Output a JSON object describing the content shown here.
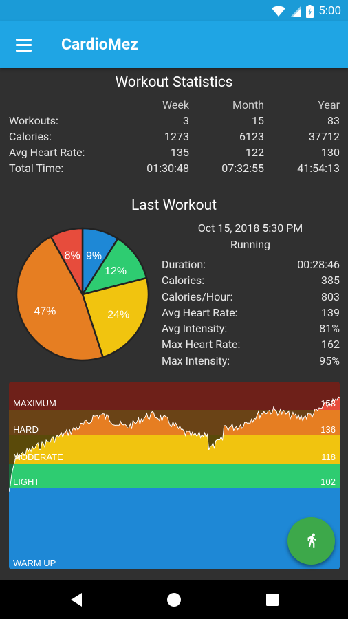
{
  "status_bar": {
    "time": "5:00",
    "icons": [
      "wifi-icon",
      "signal-icon",
      "battery-icon"
    ]
  },
  "app_bar": {
    "title": "CardioMez",
    "menu_icon": "menu-icon"
  },
  "workout_statistics": {
    "title": "Workout Statistics",
    "columns": [
      "Week",
      "Month",
      "Year"
    ],
    "rows": [
      {
        "label": "Workouts:",
        "week": "3",
        "month": "15",
        "year": "83"
      },
      {
        "label": "Calories:",
        "week": "1273",
        "month": "6123",
        "year": "37712"
      },
      {
        "label": "Avg Heart Rate:",
        "week": "135",
        "month": "122",
        "year": "130"
      },
      {
        "label": "Total Time:",
        "week": "01:30:48",
        "month": "07:32:55",
        "year": "41:54:13"
      }
    ]
  },
  "last_workout": {
    "title": "Last Workout",
    "date": "Oct 15, 2018 5:30 PM",
    "type": "Running",
    "details": [
      {
        "label": "Duration:",
        "value": "00:28:46"
      },
      {
        "label": "Calories:",
        "value": "385"
      },
      {
        "label": "Calories/Hour:",
        "value": "803"
      },
      {
        "label": "Avg Heart Rate:",
        "value": "139"
      },
      {
        "label": "Avg Intensity:",
        "value": "81%"
      },
      {
        "label": "Max Heart Rate:",
        "value": "162"
      },
      {
        "label": "Max Intensity:",
        "value": "95%"
      }
    ],
    "pie": [
      {
        "label": "9%",
        "value": 9,
        "color": "#1e88d6"
      },
      {
        "label": "12%",
        "value": 12,
        "color": "#2ecc71"
      },
      {
        "label": "24%",
        "value": 24,
        "color": "#f1c40f"
      },
      {
        "label": "47%",
        "value": 47,
        "color": "#e67e22"
      },
      {
        "label": "8%",
        "value": 8,
        "color": "#e74c3c"
      }
    ]
  },
  "heart_rate_zones": [
    {
      "name": "MAXIMUM",
      "threshold": "153",
      "color": "#6e2019"
    },
    {
      "name": "HARD",
      "threshold": "136",
      "color": "#6a4316"
    },
    {
      "name": "MODERATE",
      "threshold": "118",
      "color": "#f1c40f"
    },
    {
      "name": "LIGHT",
      "threshold": "102",
      "color": "#2ecc71"
    },
    {
      "name": "WARM UP",
      "threshold": "",
      "color": "#1e88d6"
    }
  ],
  "fab": {
    "icon": "running-icon",
    "color": "#3da84a"
  },
  "nav_bar": {
    "buttons": [
      "back-icon",
      "home-icon",
      "recents-icon"
    ]
  }
}
